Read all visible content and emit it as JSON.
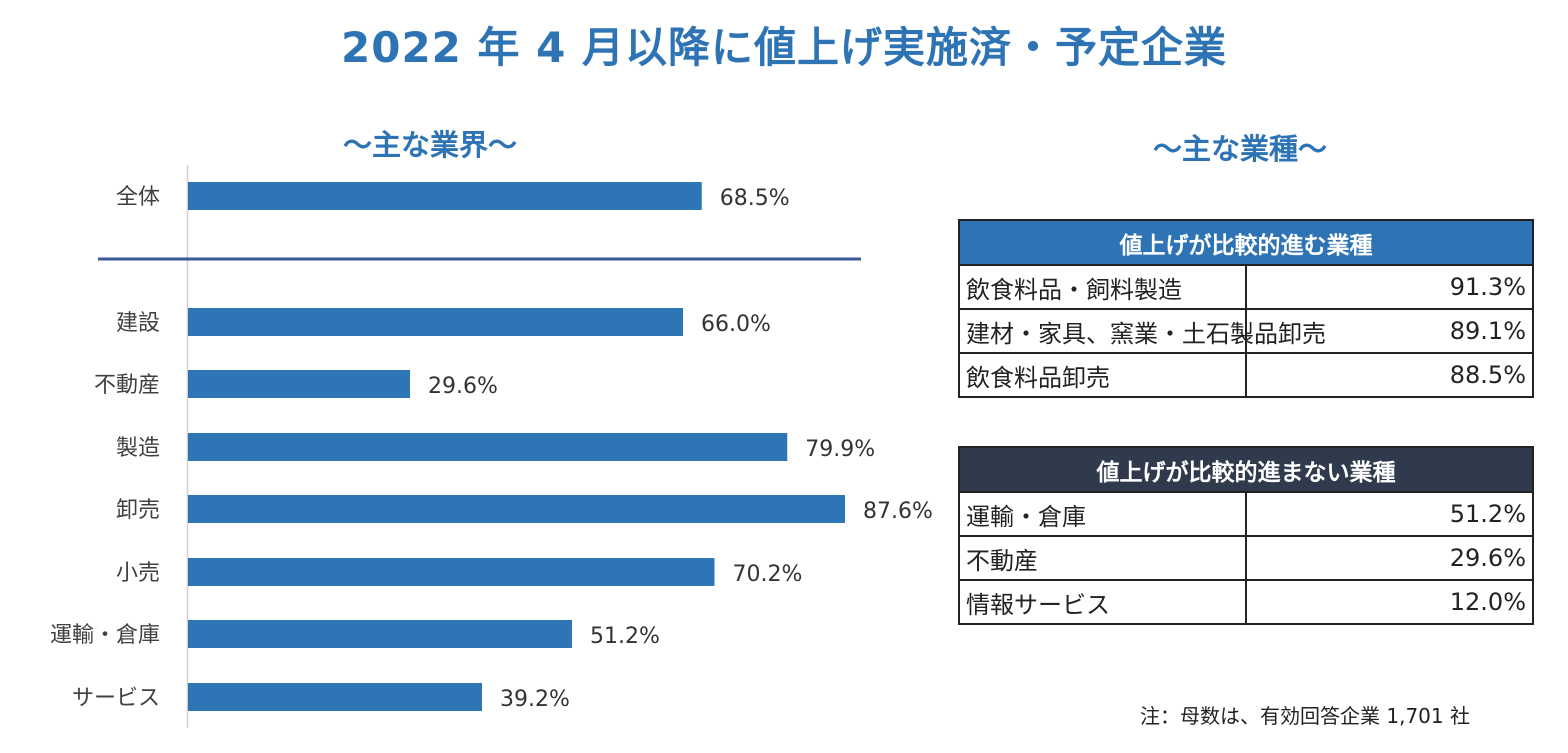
{
  "title": "2022 年 4 月以降に値上げ実施済・予定企業",
  "left_subtitle": "～主な業界～",
  "right_subtitle": "～主な業種～",
  "colors": {
    "accent": "#2E74B5",
    "bar": "#2E75B6",
    "dark_header": "#2F3B4C"
  },
  "chart_data": {
    "type": "bar",
    "orientation": "horizontal",
    "categories": [
      "全体",
      "建設",
      "不動産",
      "製造",
      "卸売",
      "小売",
      "運輸・倉庫",
      "サービス"
    ],
    "values": [
      68.5,
      66.0,
      29.6,
      79.9,
      87.6,
      70.2,
      51.2,
      39.2
    ],
    "value_labels": [
      "68.5%",
      "66.0%",
      "29.6%",
      "79.9%",
      "87.6%",
      "70.2%",
      "51.2%",
      "39.2%"
    ],
    "unit": "%",
    "xlim": [
      0,
      100
    ],
    "grid": false
  },
  "tables": {
    "advancing": {
      "header": "値上げが比較的進む業種",
      "rows": [
        {
          "name": "飲食料品・飼料製造",
          "value": "91.3%"
        },
        {
          "name": "建材・家具、窯業・土石製品卸売",
          "value": "89.1%"
        },
        {
          "name": "飲食料品卸売",
          "value": "88.5%"
        }
      ]
    },
    "not_advancing": {
      "header": "値上げが比較的進まない業種",
      "rows": [
        {
          "name": "運輸・倉庫",
          "value": "51.2%"
        },
        {
          "name": "不動産",
          "value": "29.6%"
        },
        {
          "name": "情報サービス",
          "value": "12.0%"
        }
      ]
    }
  },
  "note": "注：母数は、有効回答企業 1,701 社"
}
